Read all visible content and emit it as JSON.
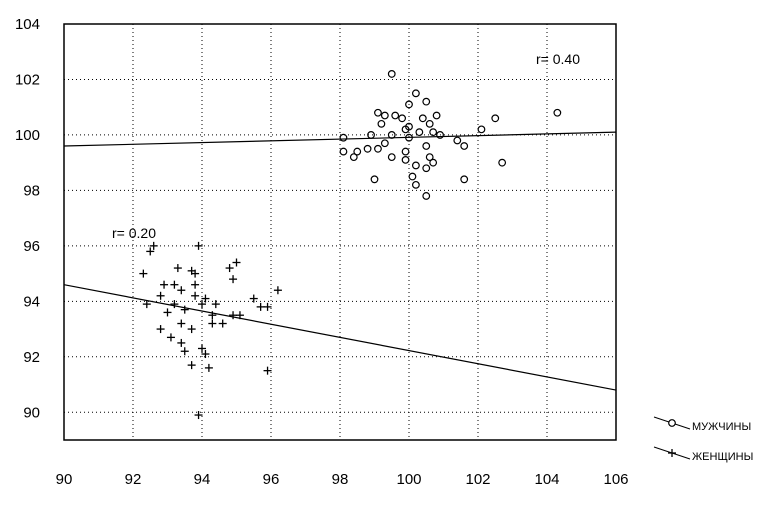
{
  "chart_data": {
    "type": "scatter",
    "xlim": [
      90,
      106
    ],
    "ylim": [
      89,
      104
    ],
    "x_ticks": [
      90,
      92,
      94,
      96,
      98,
      100,
      102,
      104,
      106
    ],
    "y_ticks": [
      90,
      92,
      94,
      96,
      98,
      100,
      102,
      104
    ],
    "grid": "dotted",
    "legend_position": "bottom-right outside",
    "series": [
      {
        "name": "МУЖЧИНЫ",
        "marker": "circle",
        "color": "#000000",
        "points": [
          [
            99.5,
            102.2
          ],
          [
            100.2,
            101.5
          ],
          [
            100.5,
            101.2
          ],
          [
            100.0,
            101.1
          ],
          [
            104.3,
            100.8
          ],
          [
            99.1,
            100.8
          ],
          [
            99.6,
            100.7
          ],
          [
            99.3,
            100.7
          ],
          [
            100.8,
            100.7
          ],
          [
            99.8,
            100.6
          ],
          [
            100.4,
            100.6
          ],
          [
            102.5,
            100.6
          ],
          [
            99.2,
            100.4
          ],
          [
            100.6,
            100.4
          ],
          [
            100.0,
            100.3
          ],
          [
            99.9,
            100.2
          ],
          [
            102.1,
            100.2
          ],
          [
            100.3,
            100.1
          ],
          [
            100.7,
            100.1
          ],
          [
            98.9,
            100.0
          ],
          [
            99.5,
            100.0
          ],
          [
            100.0,
            99.9
          ],
          [
            101.4,
            99.8
          ],
          [
            99.3,
            99.7
          ],
          [
            100.5,
            99.6
          ],
          [
            101.6,
            99.6
          ],
          [
            98.8,
            99.5
          ],
          [
            99.1,
            99.5
          ],
          [
            98.5,
            99.4
          ],
          [
            99.9,
            99.4
          ],
          [
            98.1,
            99.4
          ],
          [
            98.4,
            99.2
          ],
          [
            99.5,
            99.2
          ],
          [
            100.6,
            99.2
          ],
          [
            99.9,
            99.1
          ],
          [
            100.7,
            99.0
          ],
          [
            102.7,
            99.0
          ],
          [
            100.2,
            98.9
          ],
          [
            100.5,
            98.8
          ],
          [
            99.0,
            98.4
          ],
          [
            100.1,
            98.5
          ],
          [
            101.6,
            98.4
          ],
          [
            100.2,
            98.2
          ],
          [
            100.5,
            97.8
          ],
          [
            98.1,
            99.9
          ],
          [
            100.9,
            100.0
          ]
        ],
        "trend_line": {
          "x": [
            90,
            106
          ],
          "y": [
            99.6,
            100.1
          ]
        },
        "r_label": "r= 0.40"
      },
      {
        "name": "ЖЕНЩИНЫ",
        "marker": "plus",
        "color": "#000000",
        "points": [
          [
            92.5,
            95.8
          ],
          [
            92.6,
            96.0
          ],
          [
            93.9,
            96.0
          ],
          [
            95.0,
            95.4
          ],
          [
            94.8,
            95.2
          ],
          [
            93.3,
            95.2
          ],
          [
            93.7,
            95.1
          ],
          [
            93.8,
            95.0
          ],
          [
            92.3,
            95.0
          ],
          [
            94.9,
            94.8
          ],
          [
            92.9,
            94.6
          ],
          [
            93.2,
            94.6
          ],
          [
            93.8,
            94.6
          ],
          [
            93.4,
            94.4
          ],
          [
            96.2,
            94.4
          ],
          [
            92.8,
            94.2
          ],
          [
            93.8,
            94.2
          ],
          [
            94.1,
            94.1
          ],
          [
            95.5,
            94.1
          ],
          [
            92.4,
            93.9
          ],
          [
            93.2,
            93.9
          ],
          [
            94.0,
            93.9
          ],
          [
            94.4,
            93.9
          ],
          [
            95.7,
            93.8
          ],
          [
            93.5,
            93.7
          ],
          [
            95.9,
            93.8
          ],
          [
            93.0,
            93.6
          ],
          [
            94.3,
            93.5
          ],
          [
            94.9,
            93.5
          ],
          [
            95.1,
            93.5
          ],
          [
            93.4,
            93.2
          ],
          [
            94.3,
            93.2
          ],
          [
            94.6,
            93.2
          ],
          [
            92.8,
            93.0
          ],
          [
            93.7,
            93.0
          ],
          [
            93.4,
            92.5
          ],
          [
            93.1,
            92.7
          ],
          [
            93.5,
            92.2
          ],
          [
            94.0,
            92.3
          ],
          [
            94.2,
            91.6
          ],
          [
            93.7,
            91.7
          ],
          [
            95.9,
            91.5
          ],
          [
            93.9,
            89.9
          ],
          [
            94.1,
            92.1
          ]
        ],
        "trend_line": {
          "x": [
            90,
            106
          ],
          "y": [
            94.6,
            90.8
          ]
        },
        "r_label": "r= 0.20"
      }
    ]
  }
}
